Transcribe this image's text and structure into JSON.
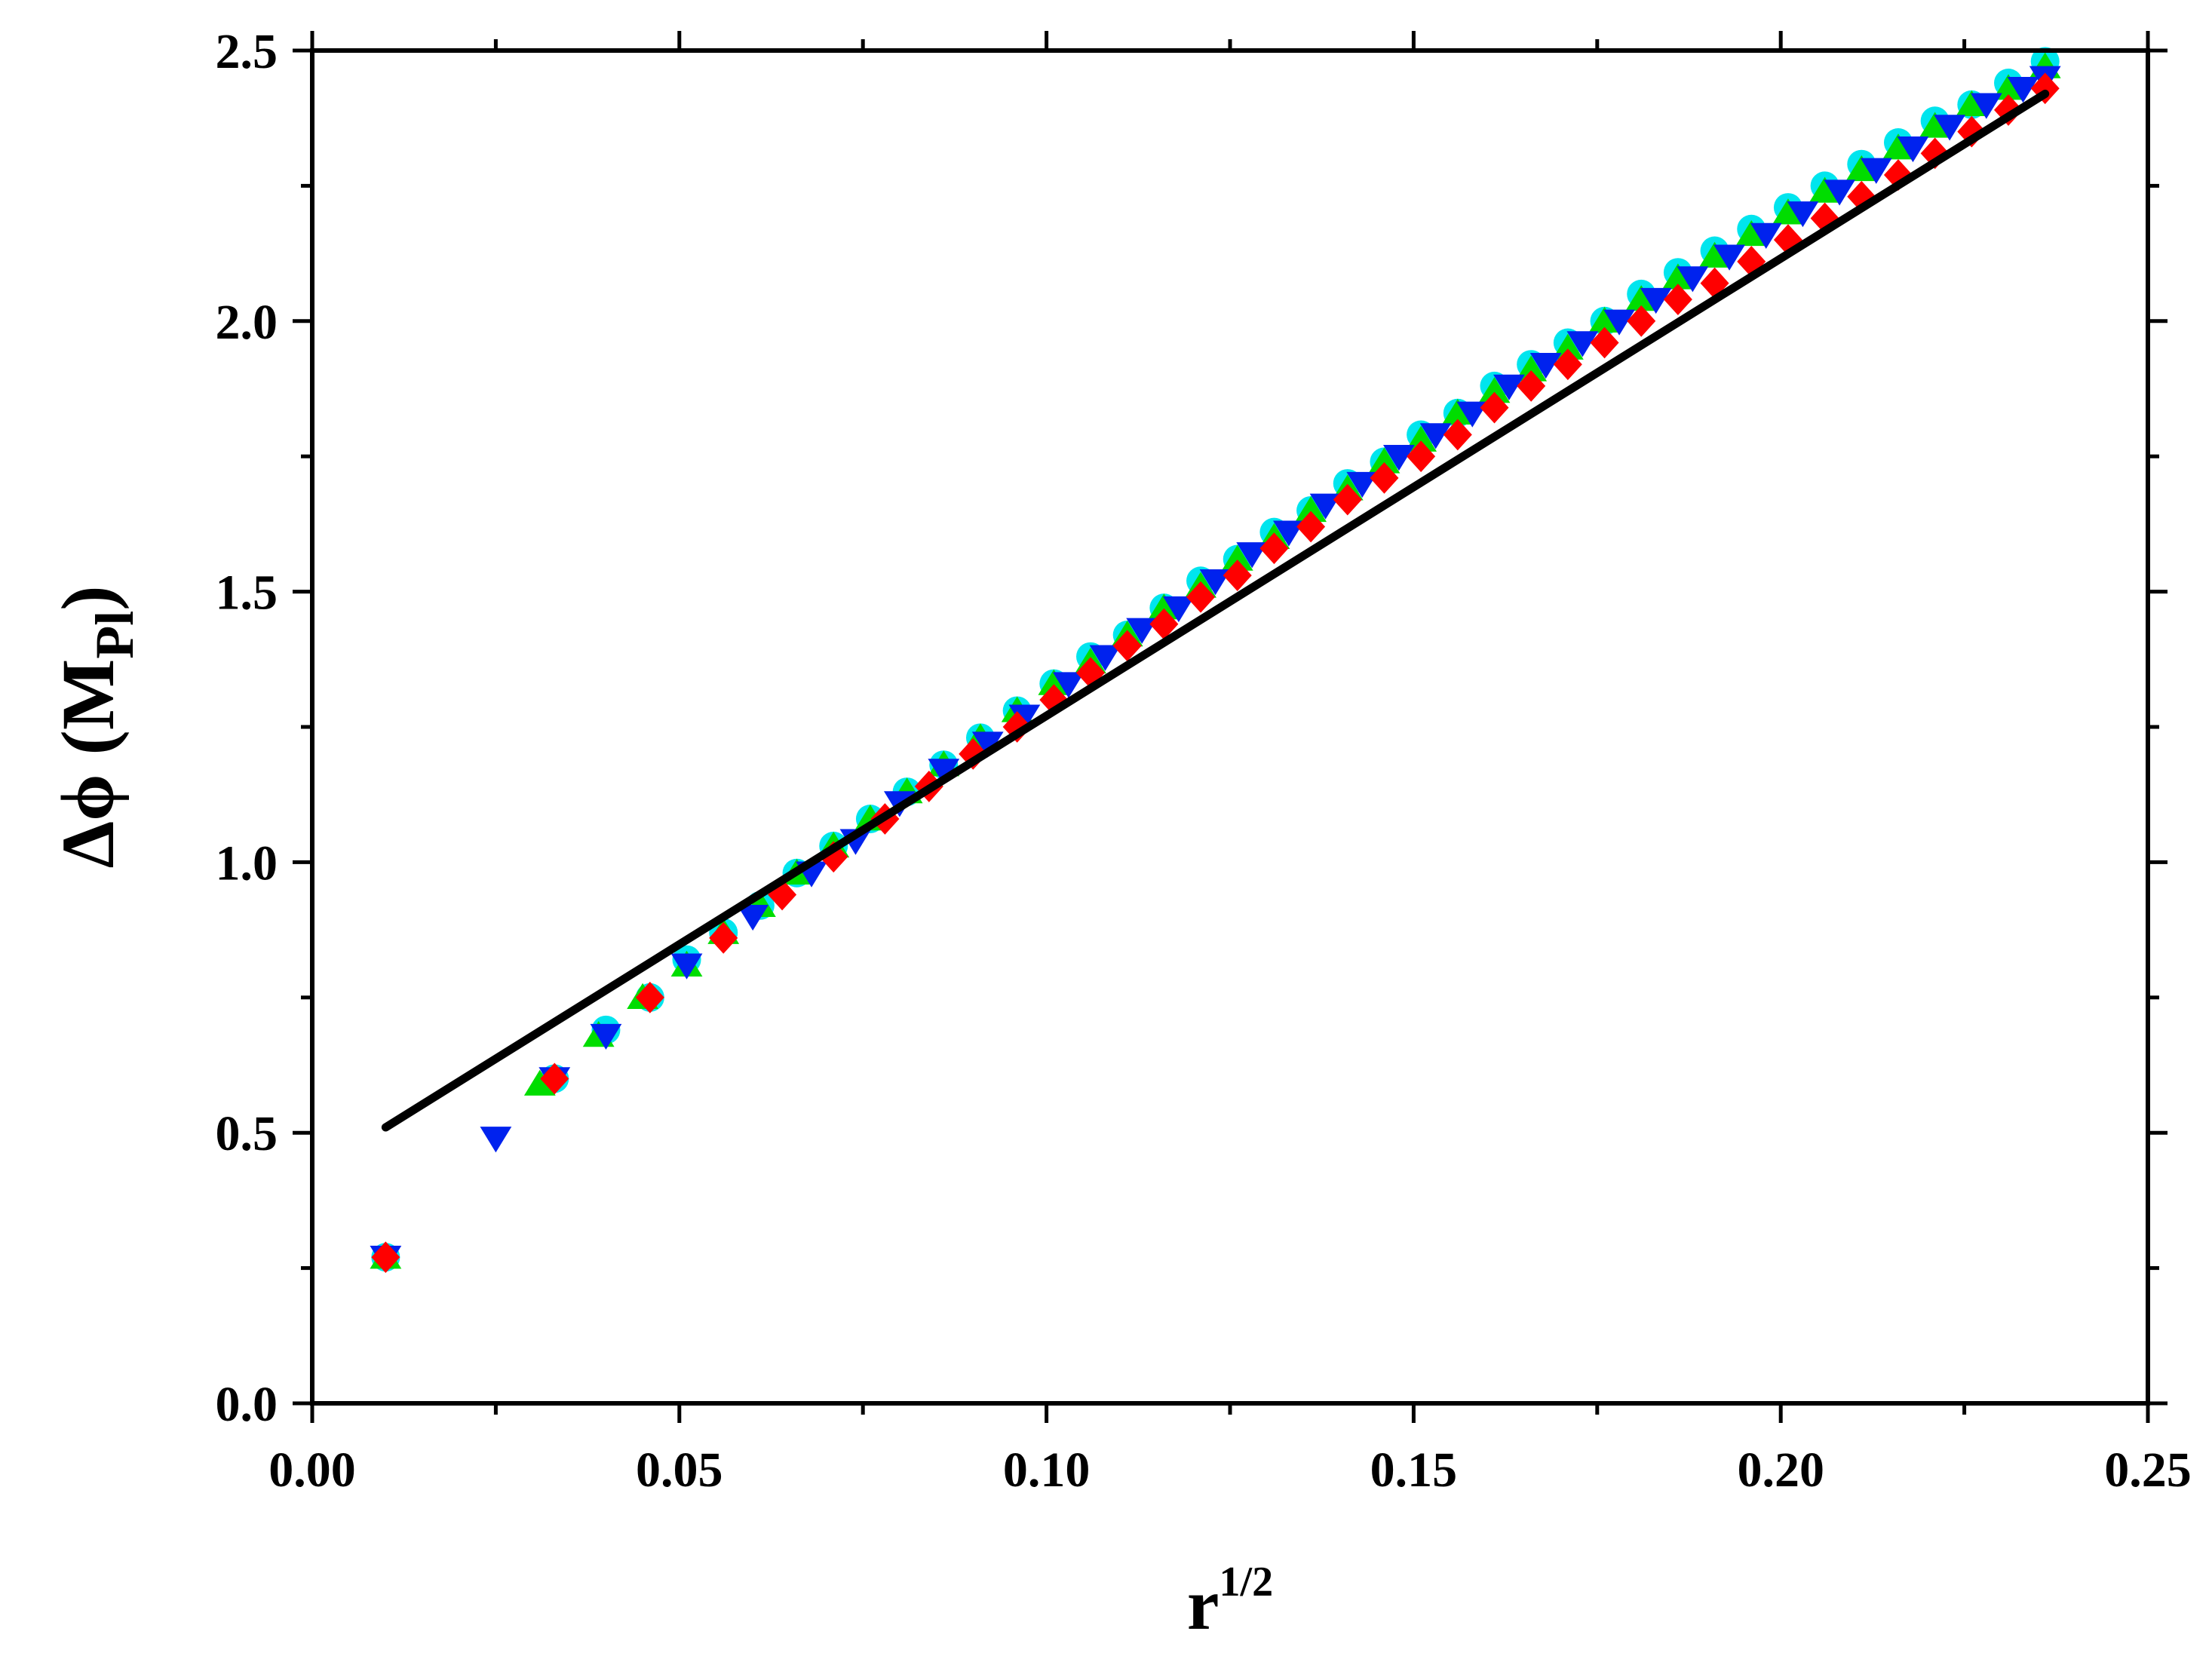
{
  "chart_data": {
    "type": "scatter",
    "title": "",
    "xlabel": {
      "base": "r",
      "sup": "1/2"
    },
    "ylabel": {
      "prefix": "Δϕ (M",
      "sub": "Pl",
      "suffix": ")"
    },
    "xlim": [
      0.0,
      0.25
    ],
    "ylim": [
      0.0,
      2.5
    ],
    "x_ticks": [
      "0.00",
      "0.05",
      "0.10",
      "0.15",
      "0.20",
      "0.25"
    ],
    "y_ticks": [
      "0.0",
      "0.5",
      "1.0",
      "1.5",
      "2.0",
      "2.5"
    ],
    "grid": false,
    "legend": "none",
    "series": [
      {
        "marker": "circle",
        "color": "#00e5ee",
        "x": [
          0.01,
          0.033,
          0.04,
          0.046,
          0.051,
          0.056,
          0.061,
          0.066,
          0.071,
          0.076,
          0.081,
          0.086,
          0.091,
          0.096,
          0.101,
          0.106,
          0.111,
          0.116,
          0.121,
          0.126,
          0.131,
          0.136,
          0.141,
          0.146,
          0.151,
          0.156,
          0.161,
          0.166,
          0.171,
          0.176,
          0.181,
          0.186,
          0.191,
          0.196,
          0.201,
          0.206,
          0.211,
          0.216,
          0.221,
          0.226,
          0.231,
          0.236
        ],
        "y": [
          0.27,
          0.6,
          0.69,
          0.75,
          0.82,
          0.87,
          0.92,
          0.98,
          1.03,
          1.08,
          1.13,
          1.18,
          1.23,
          1.28,
          1.33,
          1.38,
          1.42,
          1.47,
          1.52,
          1.56,
          1.61,
          1.65,
          1.7,
          1.74,
          1.79,
          1.83,
          1.88,
          1.92,
          1.96,
          2.0,
          2.05,
          2.09,
          2.13,
          2.17,
          2.21,
          2.25,
          2.29,
          2.33,
          2.37,
          2.4,
          2.44,
          2.48
        ]
      },
      {
        "marker": "triangle-up",
        "color": "#00dd00",
        "x": [
          0.01,
          0.031,
          0.039,
          0.045,
          0.051,
          0.056,
          0.061,
          0.066,
          0.071,
          0.076,
          0.081,
          0.086,
          0.091,
          0.096,
          0.101,
          0.106,
          0.111,
          0.116,
          0.121,
          0.126,
          0.131,
          0.136,
          0.141,
          0.146,
          0.151,
          0.156,
          0.161,
          0.166,
          0.171,
          0.176,
          0.181,
          0.186,
          0.191,
          0.196,
          0.201,
          0.206,
          0.211,
          0.216,
          0.221,
          0.226,
          0.231,
          0.236
        ],
        "y": [
          0.27,
          0.59,
          0.68,
          0.75,
          0.81,
          0.87,
          0.92,
          0.98,
          1.03,
          1.08,
          1.13,
          1.18,
          1.23,
          1.28,
          1.33,
          1.37,
          1.42,
          1.47,
          1.51,
          1.56,
          1.6,
          1.65,
          1.69,
          1.74,
          1.78,
          1.83,
          1.87,
          1.91,
          1.95,
          2.0,
          2.04,
          2.08,
          2.12,
          2.16,
          2.2,
          2.24,
          2.28,
          2.32,
          2.36,
          2.4,
          2.43,
          2.47
        ]
      },
      {
        "marker": "triangle-down",
        "color": "#0022ee",
        "x": [
          0.01,
          0.025,
          0.033,
          0.04,
          0.051,
          0.06,
          0.068,
          0.074,
          0.08,
          0.086,
          0.092,
          0.097,
          0.103,
          0.108,
          0.113,
          0.118,
          0.123,
          0.128,
          0.133,
          0.138,
          0.143,
          0.148,
          0.153,
          0.158,
          0.163,
          0.168,
          0.173,
          0.178,
          0.183,
          0.188,
          0.193,
          0.198,
          0.203,
          0.208,
          0.213,
          0.218,
          0.223,
          0.228,
          0.233,
          0.236
        ],
        "y": [
          0.27,
          0.49,
          0.6,
          0.68,
          0.81,
          0.9,
          0.98,
          1.04,
          1.11,
          1.17,
          1.22,
          1.27,
          1.33,
          1.38,
          1.43,
          1.47,
          1.52,
          1.57,
          1.61,
          1.66,
          1.7,
          1.75,
          1.79,
          1.83,
          1.88,
          1.92,
          1.96,
          2.0,
          2.04,
          2.08,
          2.12,
          2.16,
          2.2,
          2.24,
          2.28,
          2.32,
          2.36,
          2.4,
          2.43,
          2.45
        ]
      },
      {
        "marker": "diamond",
        "color": "#ff0000",
        "x": [
          0.01,
          0.033,
          0.046,
          0.056,
          0.064,
          0.071,
          0.078,
          0.084,
          0.09,
          0.096,
          0.101,
          0.106,
          0.111,
          0.116,
          0.121,
          0.126,
          0.131,
          0.136,
          0.141,
          0.146,
          0.151,
          0.156,
          0.161,
          0.166,
          0.171,
          0.176,
          0.181,
          0.186,
          0.191,
          0.196,
          0.201,
          0.206,
          0.211,
          0.216,
          0.221,
          0.226,
          0.231,
          0.236
        ],
        "y": [
          0.27,
          0.6,
          0.75,
          0.86,
          0.94,
          1.01,
          1.08,
          1.14,
          1.2,
          1.25,
          1.3,
          1.35,
          1.4,
          1.44,
          1.49,
          1.53,
          1.58,
          1.62,
          1.67,
          1.71,
          1.75,
          1.79,
          1.84,
          1.88,
          1.92,
          1.96,
          2.0,
          2.04,
          2.07,
          2.11,
          2.15,
          2.19,
          2.23,
          2.27,
          2.31,
          2.35,
          2.39,
          2.43
        ]
      },
      {
        "marker": "line",
        "color": "#000000",
        "x": [
          0.01,
          0.236
        ],
        "y": [
          0.51,
          2.42
        ]
      }
    ]
  }
}
